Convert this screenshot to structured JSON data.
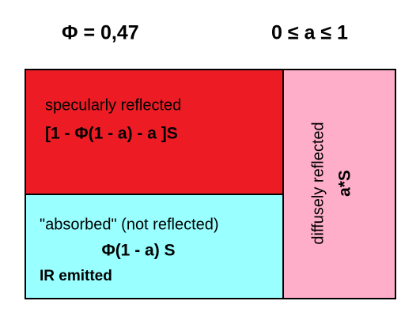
{
  "header": {
    "phi": "Φ = 0,47",
    "range": "0 ≤ a ≤ 1"
  },
  "boxes": [
    {
      "label": "specularly reflected",
      "formula": "[1 - Φ(1 - a) - a ]S"
    },
    {
      "label": "\"absorbed\" (not reflected)",
      "formula": "Φ(1 - a) S",
      "note": "IR emitted"
    },
    {
      "label": "diffusely reflected",
      "formula": "a*S"
    }
  ]
}
